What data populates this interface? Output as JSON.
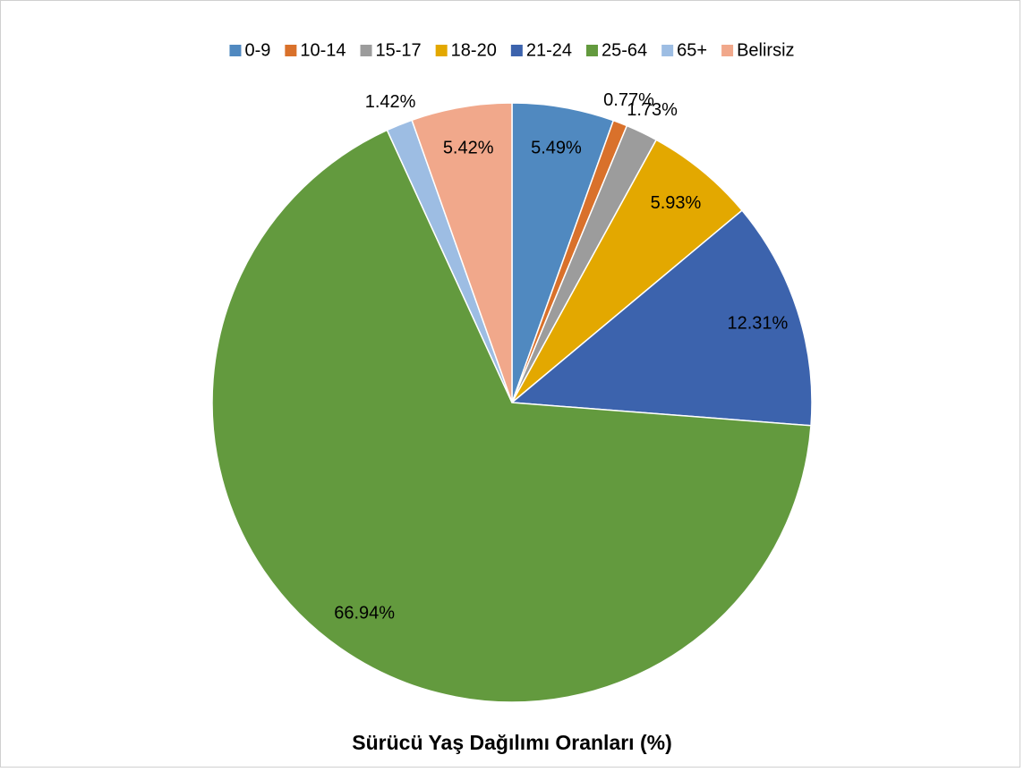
{
  "chart_data": {
    "type": "pie",
    "title": "Sürücü Yaş Dağılımı Oranları (%)",
    "categories": [
      "0-9",
      "10-14",
      "15-17",
      "18-20",
      "21-24",
      "25-64",
      "65+",
      "Belirsiz"
    ],
    "values": [
      5.49,
      0.77,
      1.73,
      5.93,
      12.31,
      66.94,
      1.42,
      5.42
    ],
    "value_labels": [
      "5.49%",
      "0.77%",
      "1.73%",
      "5.93%",
      "12.31%",
      "66.94%",
      "1.42%",
      "5.42%"
    ],
    "colors": [
      "#5089c0",
      "#d9712b",
      "#9c9c9c",
      "#e3a800",
      "#3c63ad",
      "#639a3e",
      "#9dbde3",
      "#f1a88b"
    ],
    "legend": "top"
  }
}
